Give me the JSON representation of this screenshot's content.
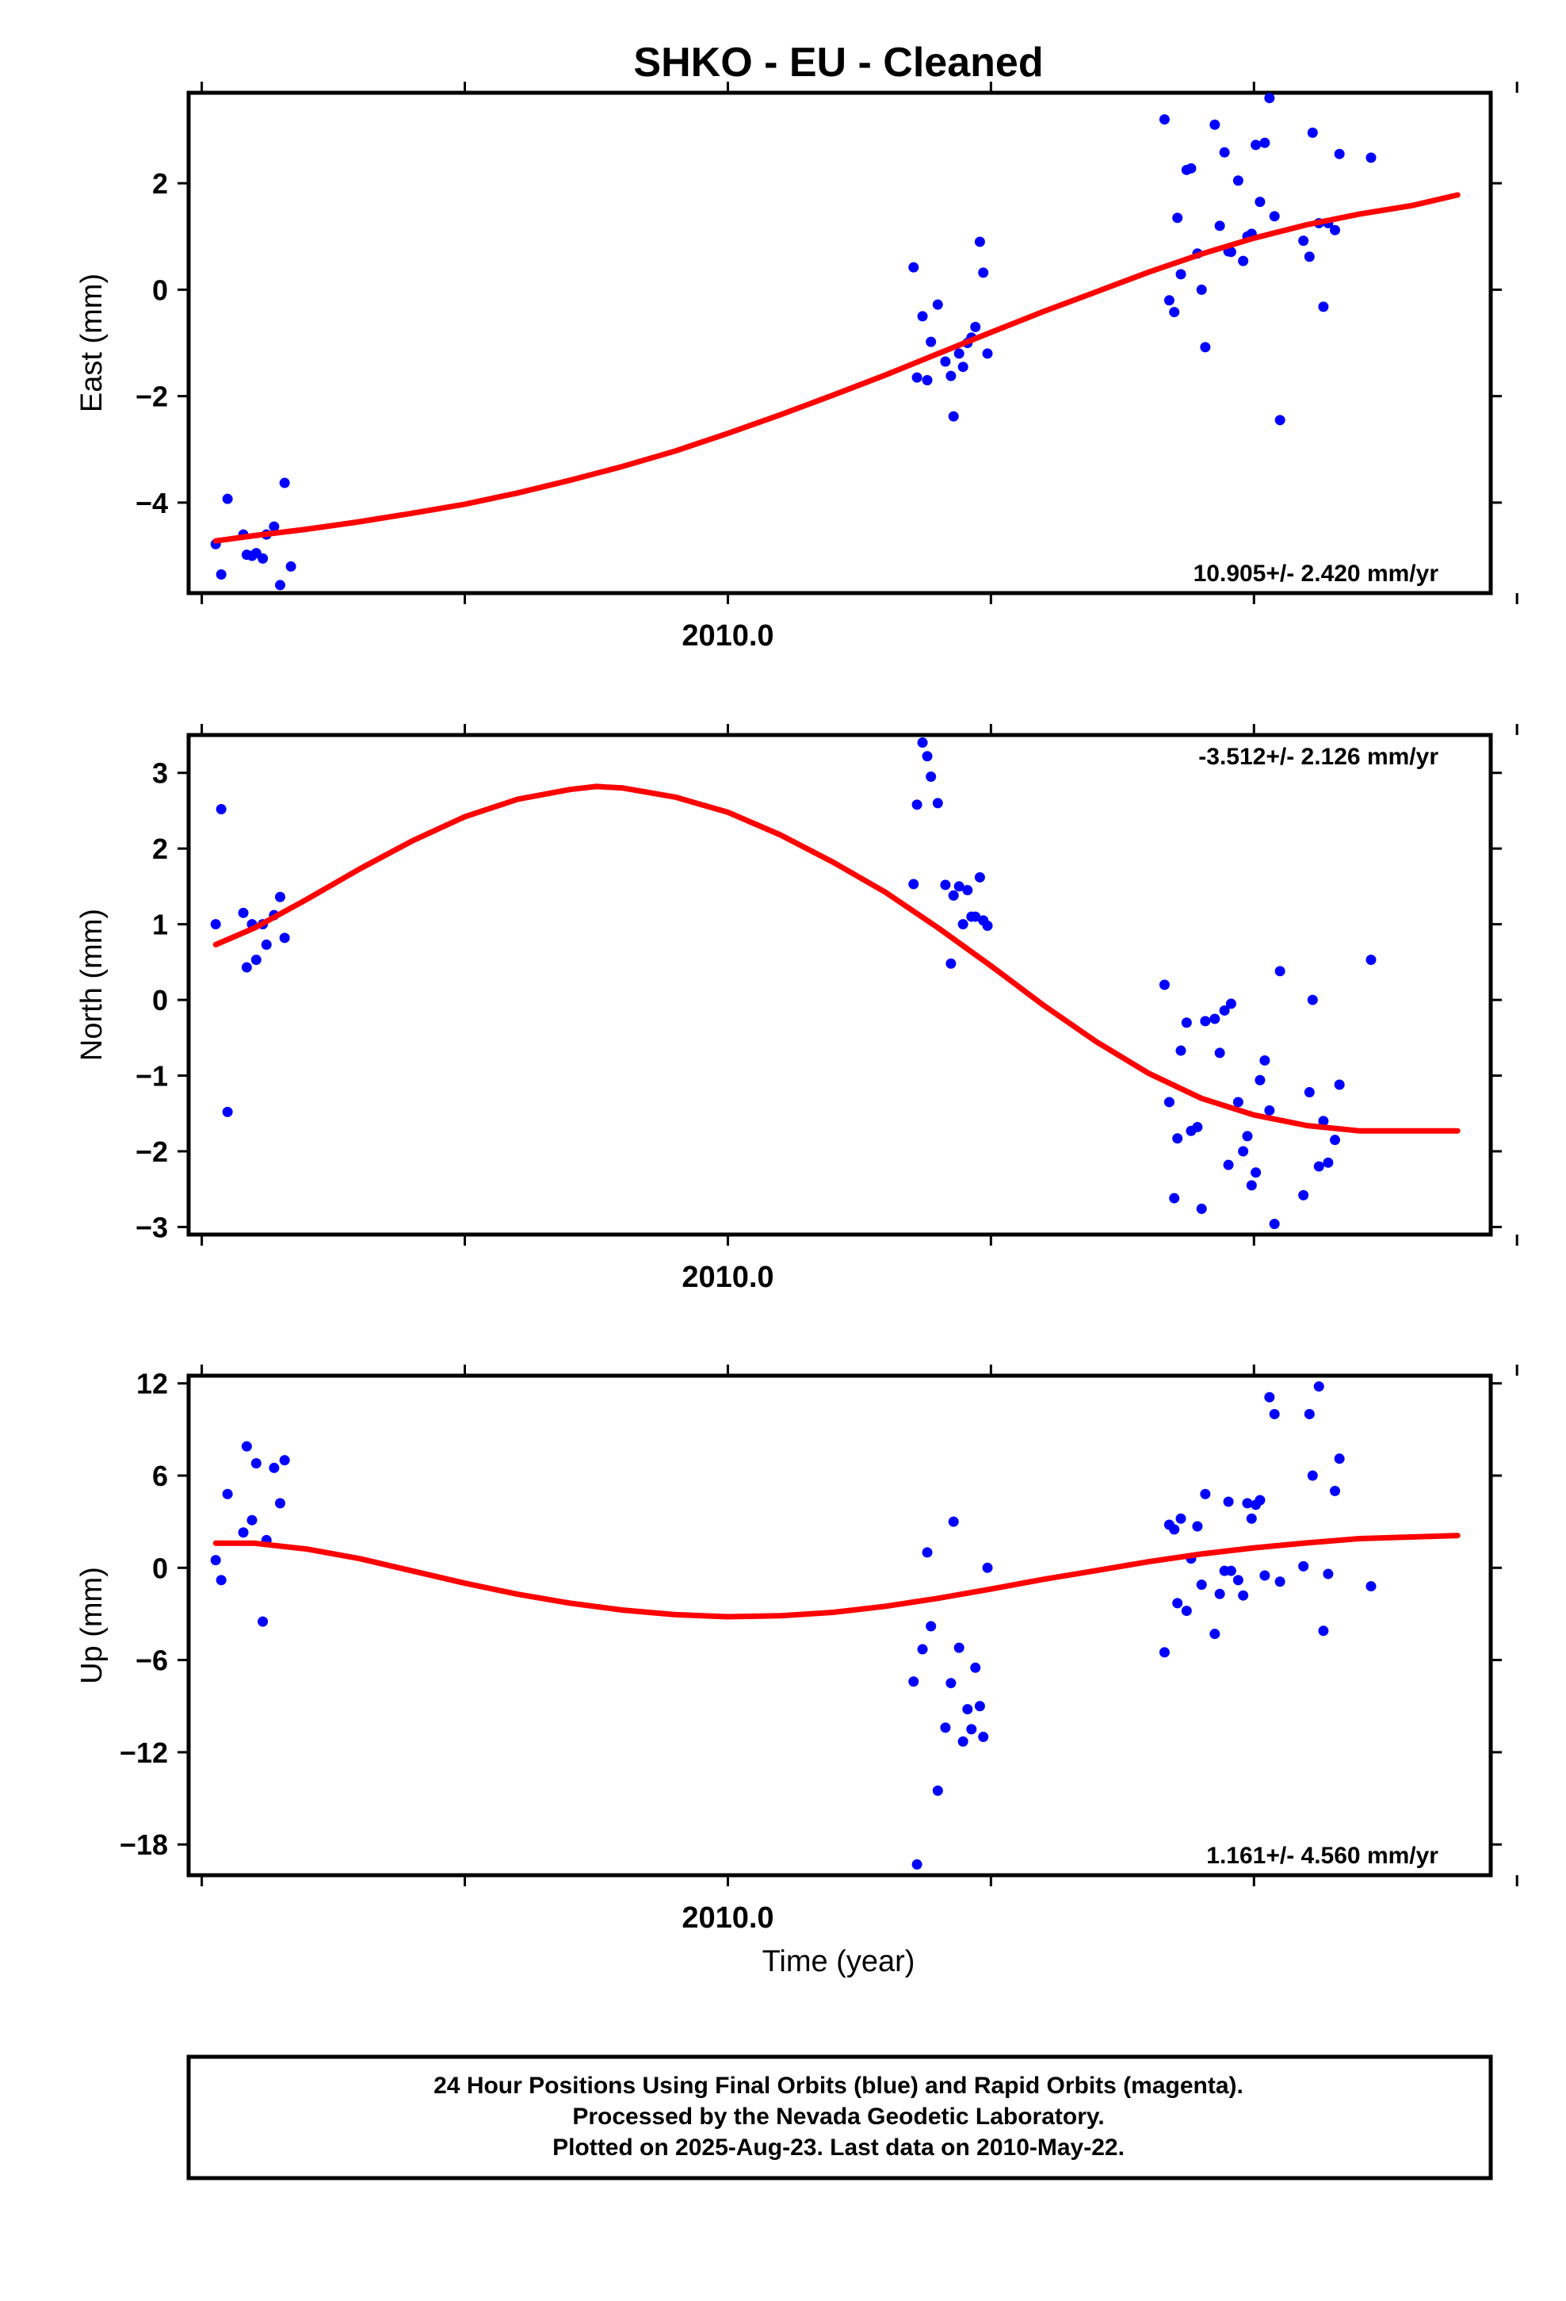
{
  "title": "SHKO  - EU - Cleaned",
  "x_axis_label": "Time (year)",
  "footer": {
    "line1": "24 Hour Positions Using Final Orbits (blue) and Rapid Orbits (magenta).",
    "line2": "Processed by the Nevada Geodetic Laboratory.",
    "line3": "Plotted on 2025-Aug-23. Last data on 2010-May-22."
  },
  "colors": {
    "data": "#0000ff",
    "fit": "#ff0000",
    "frame": "#000000"
  },
  "chart_data": [
    {
      "type": "scatter",
      "component": "East",
      "ylabel": "East (mm)",
      "rate": "10.905+/- 2.420 mm/yr",
      "rate_position": "bottom-right",
      "xlim": [
        2009.795,
        2010.29
      ],
      "ylim": [
        -5.7,
        3.7
      ],
      "yticks": [
        2,
        0,
        -2,
        -4
      ],
      "ytick_labels": [
        "2",
        "0",
        "−2",
        "−4"
      ],
      "xticks": [
        2009.8,
        2009.9,
        2010.0,
        2010.1,
        2010.2,
        2010.3
      ],
      "xtick_labels": [
        {
          "value": 2010.0,
          "label": "2010.0"
        }
      ],
      "points": [
        [
          2009.8053,
          -4.78
        ],
        [
          2009.8074,
          -5.35
        ],
        [
          2009.8098,
          -3.93
        ],
        [
          2009.8158,
          -4.6
        ],
        [
          2009.8171,
          -4.98
        ],
        [
          2009.8191,
          -5.0
        ],
        [
          2009.8207,
          -4.95
        ],
        [
          2009.8232,
          -5.05
        ],
        [
          2009.8246,
          -4.6
        ],
        [
          2009.8275,
          -4.45
        ],
        [
          2009.8298,
          -5.55
        ],
        [
          2009.8315,
          -3.63
        ],
        [
          2009.8339,
          -5.2
        ],
        [
          2010.0706,
          0.42
        ],
        [
          2010.0719,
          -1.65
        ],
        [
          2010.074,
          -0.5
        ],
        [
          2010.0758,
          -1.7
        ],
        [
          2010.0772,
          -0.98
        ],
        [
          2010.0798,
          -0.28
        ],
        [
          2010.0827,
          -1.35
        ],
        [
          2010.0848,
          -1.62
        ],
        [
          2010.0858,
          -2.38
        ],
        [
          2010.0879,
          -1.2
        ],
        [
          2010.0894,
          -1.45
        ],
        [
          2010.0911,
          -1.0
        ],
        [
          2010.0926,
          -0.9
        ],
        [
          2010.0941,
          -0.7
        ],
        [
          2010.0958,
          0.9
        ],
        [
          2010.0971,
          0.32
        ],
        [
          2010.0987,
          -1.2
        ],
        [
          2010.166,
          3.2
        ],
        [
          2010.1678,
          -0.2
        ],
        [
          2010.1697,
          -0.42
        ],
        [
          2010.1709,
          1.35
        ],
        [
          2010.1722,
          0.29
        ],
        [
          2010.1744,
          2.25
        ],
        [
          2010.1761,
          2.28
        ],
        [
          2010.1785,
          0.68
        ],
        [
          2010.1801,
          0.0
        ],
        [
          2010.1815,
          -1.08
        ],
        [
          2010.1851,
          3.1
        ],
        [
          2010.187,
          1.2
        ],
        [
          2010.1888,
          2.58
        ],
        [
          2010.1903,
          0.72
        ],
        [
          2010.1913,
          0.71
        ],
        [
          2010.194,
          2.05
        ],
        [
          2010.1959,
          0.54
        ],
        [
          2010.1975,
          1.0
        ],
        [
          2010.1991,
          1.05
        ],
        [
          2010.2007,
          2.72
        ],
        [
          2010.2023,
          1.65
        ],
        [
          2010.2041,
          2.76
        ],
        [
          2010.2059,
          3.6
        ],
        [
          2010.2078,
          1.38
        ],
        [
          2010.2099,
          -2.45
        ],
        [
          2010.2188,
          0.92
        ],
        [
          2010.2211,
          0.62
        ],
        [
          2010.2223,
          2.95
        ],
        [
          2010.2247,
          1.25
        ],
        [
          2010.2264,
          -0.32
        ],
        [
          2010.2282,
          1.25
        ],
        [
          2010.2308,
          1.12
        ],
        [
          2010.2325,
          2.55
        ],
        [
          2010.2445,
          2.48
        ]
      ],
      "fit": [
        [
          2009.8053,
          -4.72
        ],
        [
          2009.82,
          -4.62
        ],
        [
          2009.84,
          -4.5
        ],
        [
          2009.86,
          -4.36
        ],
        [
          2009.88,
          -4.2
        ],
        [
          2009.9,
          -4.03
        ],
        [
          2009.92,
          -3.82
        ],
        [
          2009.94,
          -3.58
        ],
        [
          2009.96,
          -3.32
        ],
        [
          2009.98,
          -3.03
        ],
        [
          2010.0,
          -2.7
        ],
        [
          2010.02,
          -2.35
        ],
        [
          2010.04,
          -1.98
        ],
        [
          2010.06,
          -1.6
        ],
        [
          2010.08,
          -1.2
        ],
        [
          2010.1,
          -0.8
        ],
        [
          2010.12,
          -0.41
        ],
        [
          2010.14,
          -0.04
        ],
        [
          2010.16,
          0.33
        ],
        [
          2010.18,
          0.67
        ],
        [
          2010.2,
          0.97
        ],
        [
          2010.22,
          1.22
        ],
        [
          2010.24,
          1.42
        ],
        [
          2010.26,
          1.58
        ],
        [
          2010.2774,
          1.78
        ]
      ]
    },
    {
      "type": "scatter",
      "component": "North",
      "ylabel": "North (mm)",
      "rate": "-3.512+/- 2.126 mm/yr",
      "rate_position": "top-right",
      "xlim": [
        2009.795,
        2010.29
      ],
      "ylim": [
        -3.1,
        3.5
      ],
      "yticks": [
        3,
        2,
        1,
        0,
        -1,
        -2,
        -3
      ],
      "ytick_labels": [
        "3",
        "2",
        "1",
        "0",
        "−1",
        "−2",
        "−3"
      ],
      "xticks": [
        2009.8,
        2009.9,
        2010.0,
        2010.1,
        2010.2,
        2010.3
      ],
      "xtick_labels": [
        {
          "value": 2010.0,
          "label": "2010.0"
        }
      ],
      "points": [
        [
          2009.8053,
          1.0
        ],
        [
          2009.8074,
          2.52
        ],
        [
          2009.8098,
          -1.48
        ],
        [
          2009.8158,
          1.15
        ],
        [
          2009.8171,
          0.43
        ],
        [
          2009.8191,
          1.0
        ],
        [
          2009.8207,
          0.53
        ],
        [
          2009.8232,
          1.0
        ],
        [
          2009.8246,
          0.73
        ],
        [
          2009.8275,
          1.12
        ],
        [
          2009.8298,
          1.36
        ],
        [
          2009.8315,
          0.82
        ],
        [
          2010.0706,
          1.53
        ],
        [
          2010.0719,
          2.58
        ],
        [
          2010.074,
          3.4
        ],
        [
          2010.0758,
          3.22
        ],
        [
          2010.0772,
          2.95
        ],
        [
          2010.0798,
          2.6
        ],
        [
          2010.0827,
          1.52
        ],
        [
          2010.0848,
          0.48
        ],
        [
          2010.0858,
          1.38
        ],
        [
          2010.0879,
          1.5
        ],
        [
          2010.0894,
          1.0
        ],
        [
          2010.0911,
          1.45
        ],
        [
          2010.0926,
          1.1
        ],
        [
          2010.0941,
          1.1
        ],
        [
          2010.0958,
          1.62
        ],
        [
          2010.0971,
          1.05
        ],
        [
          2010.0987,
          0.98
        ],
        [
          2010.166,
          0.2
        ],
        [
          2010.1678,
          -1.35
        ],
        [
          2010.1697,
          -2.62
        ],
        [
          2010.1709,
          -1.83
        ],
        [
          2010.1722,
          -0.67
        ],
        [
          2010.1744,
          -0.3
        ],
        [
          2010.1761,
          -1.73
        ],
        [
          2010.1785,
          -1.68
        ],
        [
          2010.1801,
          -2.76
        ],
        [
          2010.1815,
          -0.28
        ],
        [
          2010.1851,
          -0.25
        ],
        [
          2010.187,
          -0.7
        ],
        [
          2010.1888,
          -0.14
        ],
        [
          2010.1903,
          -2.18
        ],
        [
          2010.1913,
          -0.05
        ],
        [
          2010.194,
          -1.35
        ],
        [
          2010.1959,
          -2.0
        ],
        [
          2010.1975,
          -1.8
        ],
        [
          2010.1991,
          -2.45
        ],
        [
          2010.2007,
          -2.28
        ],
        [
          2010.2023,
          -1.06
        ],
        [
          2010.2041,
          -0.8
        ],
        [
          2010.2059,
          -1.46
        ],
        [
          2010.2078,
          -2.96
        ],
        [
          2010.2099,
          0.38
        ],
        [
          2010.2188,
          -2.58
        ],
        [
          2010.2211,
          -1.22
        ],
        [
          2010.2223,
          0.0
        ],
        [
          2010.2247,
          -2.2
        ],
        [
          2010.2264,
          -1.6
        ],
        [
          2010.2282,
          -2.15
        ],
        [
          2010.2308,
          -1.85
        ],
        [
          2010.2325,
          -1.12
        ],
        [
          2010.2445,
          0.53
        ]
      ],
      "fit": [
        [
          2009.8053,
          0.73
        ],
        [
          2009.82,
          0.95
        ],
        [
          2009.84,
          1.33
        ],
        [
          2009.86,
          1.73
        ],
        [
          2009.88,
          2.1
        ],
        [
          2009.9,
          2.42
        ],
        [
          2009.92,
          2.65
        ],
        [
          2009.94,
          2.78
        ],
        [
          2009.95,
          2.82
        ],
        [
          2009.96,
          2.8
        ],
        [
          2009.98,
          2.68
        ],
        [
          2010.0,
          2.48
        ],
        [
          2010.02,
          2.18
        ],
        [
          2010.04,
          1.82
        ],
        [
          2010.06,
          1.42
        ],
        [
          2010.08,
          0.95
        ],
        [
          2010.1,
          0.45
        ],
        [
          2010.12,
          -0.07
        ],
        [
          2010.14,
          -0.55
        ],
        [
          2010.16,
          -0.97
        ],
        [
          2010.18,
          -1.3
        ],
        [
          2010.2,
          -1.52
        ],
        [
          2010.22,
          -1.66
        ],
        [
          2010.24,
          -1.73
        ],
        [
          2010.2774,
          -1.73
        ]
      ]
    },
    {
      "type": "scatter",
      "component": "Up",
      "ylabel": "Up (mm)",
      "rate": "1.161+/- 4.560 mm/yr",
      "rate_position": "bottom-right",
      "xlim": [
        2009.795,
        2010.29
      ],
      "ylim": [
        -20,
        12.5
      ],
      "yticks": [
        12,
        6,
        0,
        -6,
        -12,
        -18
      ],
      "ytick_labels": [
        "12",
        "6",
        "0",
        "−6",
        "−12",
        "−18"
      ],
      "xticks": [
        2009.8,
        2009.9,
        2010.0,
        2010.1,
        2010.2,
        2010.3
      ],
      "xtick_labels": [
        {
          "value": 2010.0,
          "label": "2010.0"
        }
      ],
      "points": [
        [
          2009.8053,
          0.5
        ],
        [
          2009.8074,
          -0.8
        ],
        [
          2009.8098,
          4.8
        ],
        [
          2009.8158,
          2.3
        ],
        [
          2009.8171,
          7.9
        ],
        [
          2009.8191,
          3.1
        ],
        [
          2009.8207,
          6.8
        ],
        [
          2009.8232,
          -3.5
        ],
        [
          2009.8246,
          1.8
        ],
        [
          2009.8275,
          6.5
        ],
        [
          2009.8298,
          4.2
        ],
        [
          2009.8315,
          7.0
        ],
        [
          2010.0706,
          -7.4
        ],
        [
          2010.0719,
          -19.3
        ],
        [
          2010.074,
          -5.3
        ],
        [
          2010.0758,
          1.0
        ],
        [
          2010.0772,
          -3.8
        ],
        [
          2010.0798,
          -14.5
        ],
        [
          2010.0827,
          -10.4
        ],
        [
          2010.0848,
          -7.5
        ],
        [
          2010.0858,
          3.0
        ],
        [
          2010.0879,
          -5.2
        ],
        [
          2010.0894,
          -11.3
        ],
        [
          2010.0911,
          -9.2
        ],
        [
          2010.0926,
          -10.5
        ],
        [
          2010.0941,
          -6.5
        ],
        [
          2010.0958,
          -9.0
        ],
        [
          2010.0971,
          -11.0
        ],
        [
          2010.0987,
          0.0
        ],
        [
          2010.166,
          -5.5
        ],
        [
          2010.1678,
          2.8
        ],
        [
          2010.1697,
          2.5
        ],
        [
          2010.1709,
          -2.3
        ],
        [
          2010.1722,
          3.2
        ],
        [
          2010.1744,
          -2.8
        ],
        [
          2010.1761,
          0.6
        ],
        [
          2010.1785,
          2.7
        ],
        [
          2010.1801,
          -1.1
        ],
        [
          2010.1815,
          4.8
        ],
        [
          2010.1851,
          -4.3
        ],
        [
          2010.187,
          -1.7
        ],
        [
          2010.1888,
          -0.2
        ],
        [
          2010.1903,
          4.3
        ],
        [
          2010.1913,
          -0.2
        ],
        [
          2010.194,
          -0.8
        ],
        [
          2010.1959,
          -1.8
        ],
        [
          2010.1975,
          4.2
        ],
        [
          2010.1991,
          3.2
        ],
        [
          2010.2007,
          4.1
        ],
        [
          2010.2023,
          4.4
        ],
        [
          2010.2041,
          -0.5
        ],
        [
          2010.2059,
          11.1
        ],
        [
          2010.2078,
          10.0
        ],
        [
          2010.2099,
          -0.9
        ],
        [
          2010.2188,
          0.1
        ],
        [
          2010.2211,
          10.0
        ],
        [
          2010.2223,
          6.0
        ],
        [
          2010.2247,
          11.8
        ],
        [
          2010.2264,
          -4.1
        ],
        [
          2010.2282,
          -0.4
        ],
        [
          2010.2308,
          5.0
        ],
        [
          2010.2325,
          7.1
        ],
        [
          2010.2445,
          -1.2
        ]
      ],
      "fit": [
        [
          2009.8053,
          1.6
        ],
        [
          2009.82,
          1.6
        ],
        [
          2009.84,
          1.22
        ],
        [
          2009.86,
          0.6
        ],
        [
          2009.88,
          -0.2
        ],
        [
          2009.9,
          -1.0
        ],
        [
          2009.92,
          -1.72
        ],
        [
          2009.94,
          -2.3
        ],
        [
          2009.96,
          -2.75
        ],
        [
          2009.98,
          -3.05
        ],
        [
          2010.0,
          -3.18
        ],
        [
          2010.02,
          -3.12
        ],
        [
          2010.04,
          -2.9
        ],
        [
          2010.06,
          -2.5
        ],
        [
          2010.08,
          -1.98
        ],
        [
          2010.1,
          -1.38
        ],
        [
          2010.12,
          -0.75
        ],
        [
          2010.14,
          -0.18
        ],
        [
          2010.16,
          0.4
        ],
        [
          2010.18,
          0.9
        ],
        [
          2010.2,
          1.3
        ],
        [
          2010.22,
          1.62
        ],
        [
          2010.24,
          1.9
        ],
        [
          2010.2774,
          2.1
        ]
      ]
    }
  ]
}
